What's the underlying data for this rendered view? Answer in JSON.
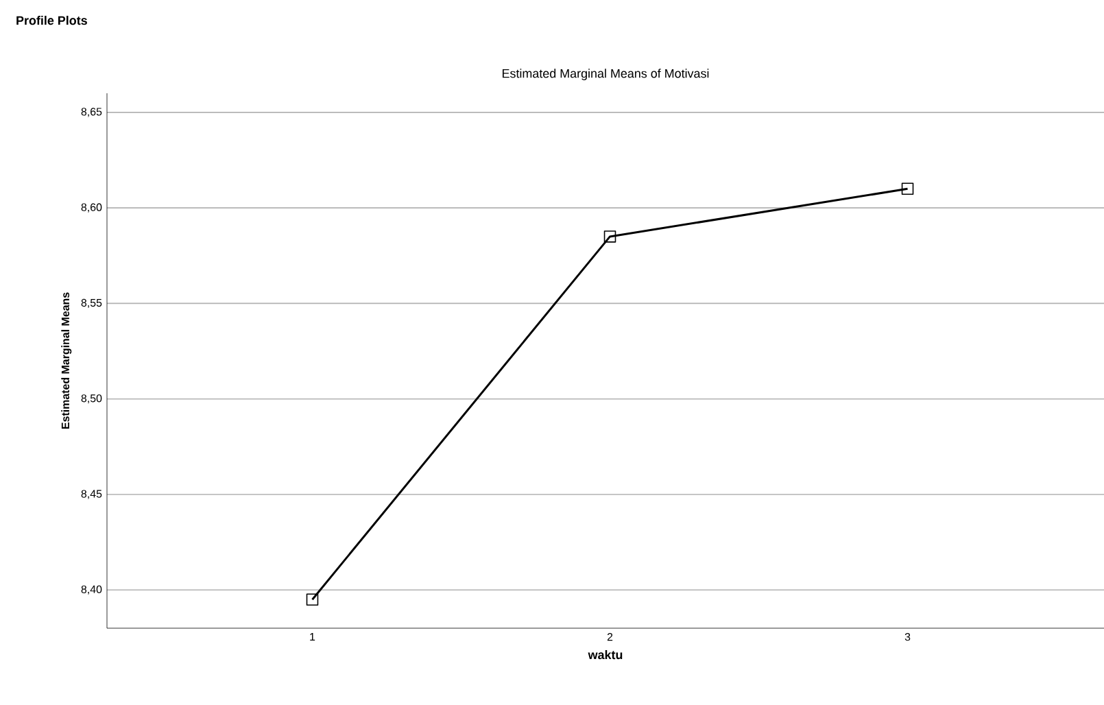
{
  "chart_data": {
    "type": "line",
    "title": "Estimated Marginal Means of Motivasi",
    "xlabel": "waktu",
    "ylabel": "Estimated Marginal Means",
    "annotations": [
      "Profile Plots"
    ],
    "categories": [
      "1",
      "2",
      "3"
    ],
    "values": [
      8.395,
      8.585,
      8.61
    ],
    "color": "#000000",
    "ylim": [
      8.38,
      8.66
    ],
    "yticks": [
      {
        "value": 8.4,
        "label": "8,40"
      },
      {
        "value": 8.45,
        "label": "8,45"
      },
      {
        "value": 8.5,
        "label": "8,50"
      },
      {
        "value": 8.55,
        "label": "8,55"
      },
      {
        "value": 8.6,
        "label": "8,60"
      },
      {
        "value": 8.65,
        "label": "8,65"
      }
    ],
    "grid": "y",
    "marker": "square",
    "line_style": "solid"
  }
}
